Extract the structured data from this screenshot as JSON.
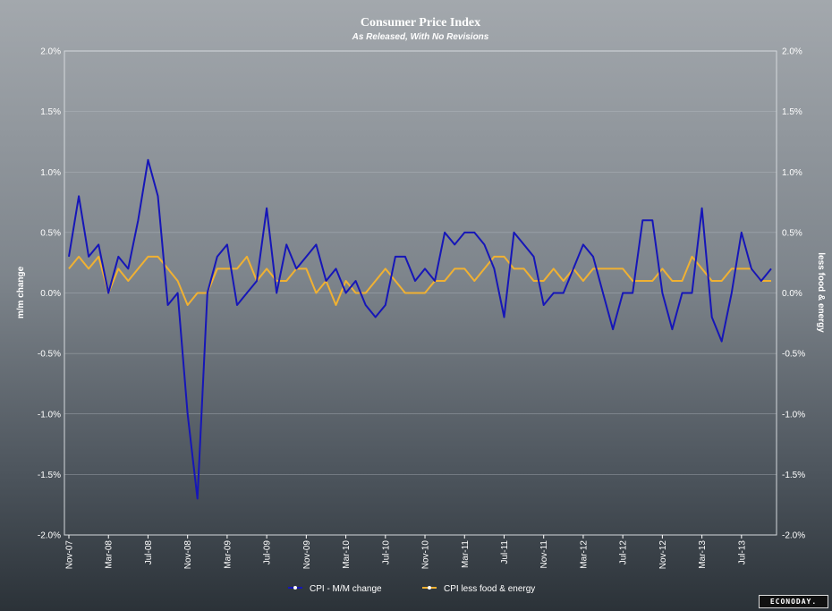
{
  "colors": {
    "cpi": "#1616b8",
    "core": "#f0b132",
    "grid": "#bcc2c8"
  },
  "brand": "ECONODAY.",
  "chart_data": {
    "type": "line",
    "title": "Consumer Price Index",
    "subtitle": "As Released, With No Revisions",
    "ylabel_left": "m/m change",
    "ylabel_right": "less food & energy",
    "ylim": [
      -2.0,
      2.0
    ],
    "yticks": [
      "2.0%",
      "1.5%",
      "1.0%",
      "0.5%",
      "0.0%",
      "-0.5%",
      "-1.0%",
      "-1.5%",
      "-2.0%"
    ],
    "xtick_labels": [
      "Nov-07",
      "Mar-08",
      "Jul-08",
      "Nov-08",
      "Mar-09",
      "Jul-09",
      "Nov-09",
      "Mar-10",
      "Jul-10",
      "Nov-10",
      "Mar-11",
      "Jul-11",
      "Nov-11",
      "Mar-12",
      "Jul-12",
      "Nov-12",
      "Mar-13",
      "Jul-13"
    ],
    "xtick_interval": 4,
    "first_month": "Nov-07",
    "grid": true,
    "legend_position": "bottom",
    "series": [
      {
        "name": "CPI - M/M change",
        "values": [
          0.3,
          0.8,
          0.3,
          0.4,
          0.0,
          0.3,
          0.2,
          0.6,
          1.1,
          0.8,
          -0.1,
          0.0,
          -1.0,
          -1.7,
          0.0,
          0.3,
          0.4,
          -0.1,
          0.0,
          0.1,
          0.7,
          0.0,
          0.4,
          0.2,
          0.3,
          0.4,
          0.1,
          0.2,
          0.0,
          0.1,
          -0.1,
          -0.2,
          -0.1,
          0.3,
          0.3,
          0.1,
          0.2,
          0.1,
          0.5,
          0.4,
          0.5,
          0.5,
          0.4,
          0.2,
          -0.2,
          0.5,
          0.4,
          0.3,
          -0.1,
          0.0,
          0.0,
          0.2,
          0.4,
          0.3,
          0.0,
          -0.3,
          0.0,
          0.0,
          0.6,
          0.6,
          0.0,
          -0.3,
          0.0,
          0.0,
          0.7,
          -0.2,
          -0.4,
          0.0,
          0.5,
          0.2,
          0.1,
          0.2
        ]
      },
      {
        "name": "CPI less food & energy",
        "values": [
          0.2,
          0.3,
          0.2,
          0.3,
          0.0,
          0.2,
          0.1,
          0.2,
          0.3,
          0.3,
          0.2,
          0.1,
          -0.1,
          0.0,
          0.0,
          0.2,
          0.2,
          0.2,
          0.3,
          0.1,
          0.2,
          0.1,
          0.1,
          0.2,
          0.2,
          0.0,
          0.1,
          -0.1,
          0.1,
          0.0,
          0.0,
          0.1,
          0.2,
          0.1,
          0.0,
          0.0,
          0.0,
          0.1,
          0.1,
          0.2,
          0.2,
          0.1,
          0.2,
          0.3,
          0.3,
          0.2,
          0.2,
          0.1,
          0.1,
          0.2,
          0.1,
          0.2,
          0.1,
          0.2,
          0.2,
          0.2,
          0.2,
          0.1,
          0.1,
          0.1,
          0.2,
          0.1,
          0.1,
          0.3,
          0.2,
          0.1,
          0.1,
          0.2,
          0.2,
          0.2,
          0.1,
          0.1
        ]
      }
    ]
  }
}
